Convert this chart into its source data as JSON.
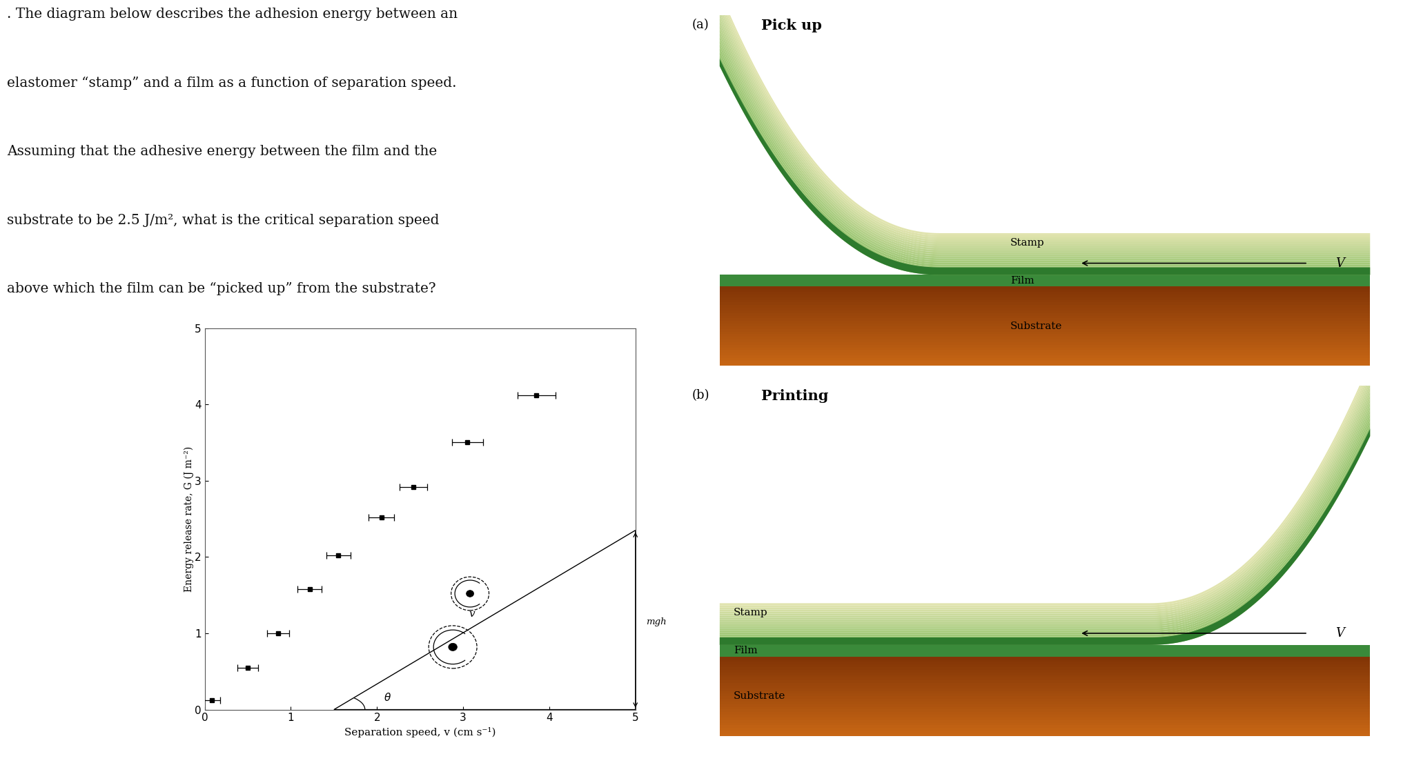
{
  "background_color": "#ffffff",
  "text_color": "#111111",
  "question_lines": [
    ". The diagram below describes the adhesion energy between an",
    "elastomer “stamp” and a film as a function of separation speed.",
    "Assuming that the adhesive energy between the film and the",
    "substrate to be 2.5 J/m², what is the critical separation speed",
    "above which the film can be “picked up” from the substrate?"
  ],
  "data_x": [
    0.08,
    0.5,
    0.85,
    1.22,
    1.55,
    2.05,
    2.42,
    3.05,
    3.85
  ],
  "data_y": [
    0.12,
    0.55,
    1.0,
    1.58,
    2.02,
    2.52,
    2.92,
    3.5,
    4.12
  ],
  "xerr": [
    0.1,
    0.12,
    0.13,
    0.14,
    0.14,
    0.15,
    0.16,
    0.18,
    0.22
  ],
  "xlim": [
    0,
    5
  ],
  "ylim": [
    0,
    5
  ],
  "xticks": [
    0,
    1,
    2,
    3,
    4,
    5
  ],
  "yticks": [
    0,
    1,
    2,
    3,
    4,
    5
  ],
  "xlabel": "Separation speed, v (cm s⁻¹)",
  "ylabel": "Energy release rate, G (J m⁻²)",
  "label_a": "(a)",
  "label_b": "(b)",
  "pickup_text": "Pick up",
  "printing_text": "Printing",
  "stamp_text": "Stamp",
  "film_text": "Film",
  "substrate_text": "Substrate",
  "v_label": "V",
  "stamp_light": "#b8dca0",
  "stamp_mid": "#78b85a",
  "stamp_dark": "#2d7a2d",
  "film_color": "#3a8a3a",
  "substrate_top": "#c87020",
  "substrate_bot": "#7a3a08"
}
